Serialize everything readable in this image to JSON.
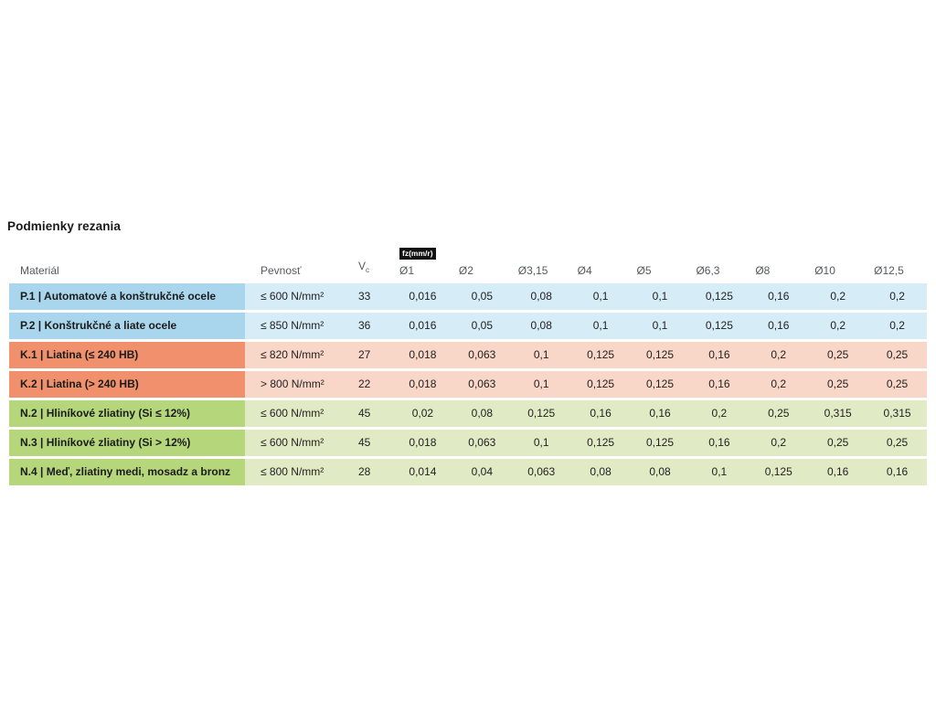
{
  "title": "Podmienky rezania",
  "table": {
    "headers": {
      "material": "Materiál",
      "strength": "Pevnosť",
      "vc_main": "V",
      "vc_sub": "c",
      "fz_badge": "fz(mm/r)",
      "diameters": [
        "Ø1",
        "Ø2",
        "Ø3,15",
        "Ø4",
        "Ø5",
        "Ø6,3",
        "Ø8",
        "Ø10",
        "Ø12,5"
      ]
    },
    "rows": [
      {
        "group": "steel",
        "material": "P.1 | Automatové a konštrukčné ocele",
        "strength": "≤ 600 N/mm²",
        "vc": "33",
        "values": [
          "0,016",
          "0,05",
          "0,08",
          "0,1",
          "0,1",
          "0,125",
          "0,16",
          "0,2",
          "0,2"
        ]
      },
      {
        "group": "steel",
        "material": "P.2 | Konštrukčné a liate ocele",
        "strength": "≤ 850 N/mm²",
        "vc": "36",
        "values": [
          "0,016",
          "0,05",
          "0,08",
          "0,1",
          "0,1",
          "0,125",
          "0,16",
          "0,2",
          "0,2"
        ]
      },
      {
        "group": "cast",
        "material": "K.1 | Liatina (≤ 240 HB)",
        "strength": "≤ 820 N/mm²",
        "vc": "27",
        "values": [
          "0,018",
          "0,063",
          "0,1",
          "0,125",
          "0,125",
          "0,16",
          "0,2",
          "0,25",
          "0,25"
        ]
      },
      {
        "group": "cast",
        "material": "K.2 | Liatina (> 240 HB)",
        "strength": "> 800 N/mm²",
        "vc": "22",
        "values": [
          "0,018",
          "0,063",
          "0,1",
          "0,125",
          "0,125",
          "0,16",
          "0,2",
          "0,25",
          "0,25"
        ]
      },
      {
        "group": "nonferrous",
        "material": "N.2 | Hliníkové zliatiny (Si ≤ 12%)",
        "strength": "≤ 600 N/mm²",
        "vc": "45",
        "values": [
          "0,02",
          "0,08",
          "0,125",
          "0,16",
          "0,16",
          "0,2",
          "0,25",
          "0,315",
          "0,315"
        ]
      },
      {
        "group": "nonferrous",
        "material": "N.3 | Hliníkové zliatiny (Si > 12%)",
        "strength": "≤ 600 N/mm²",
        "vc": "45",
        "values": [
          "0,018",
          "0,063",
          "0,1",
          "0,125",
          "0,125",
          "0,16",
          "0,2",
          "0,25",
          "0,25"
        ]
      },
      {
        "group": "nonferrous",
        "material": "N.4 | Meď, zliatiny medi, mosadz a bronz",
        "strength": "≤ 800 N/mm²",
        "vc": "28",
        "values": [
          "0,014",
          "0,04",
          "0,063",
          "0,08",
          "0,08",
          "0,1",
          "0,125",
          "0,16",
          "0,16"
        ]
      }
    ]
  },
  "colors": {
    "steel_label": "#a9d6ec",
    "steel_row": "#d6ecf7",
    "cast_label": "#f0906c",
    "cast_row": "#f9d7c8",
    "nonferrous_label": "#b6d67c",
    "nonferrous_row": "#e0ebc6",
    "badge_bg": "#111111",
    "badge_text": "#ffffff"
  }
}
